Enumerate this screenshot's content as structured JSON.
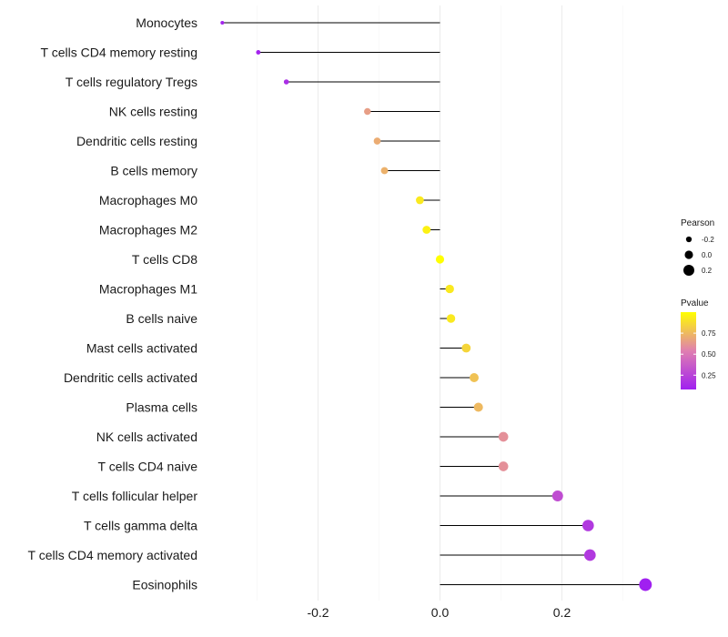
{
  "chart_data": {
    "type": "lollipop",
    "title": "",
    "xlabel": "",
    "ylabel": "",
    "xlim": [
      -0.36,
      0.34
    ],
    "x_ticks": [
      -0.2,
      0.0,
      0.2
    ],
    "x_tick_labels": [
      "-0.2",
      "0.0",
      "0.2"
    ],
    "grid": true,
    "categories": [
      "Monocytes",
      "T cells CD4 memory resting",
      "T cells regulatory  Tregs",
      "NK cells resting",
      "Dendritic cells resting",
      "B cells memory",
      "Macrophages M0",
      "Macrophages M2",
      "T cells CD8",
      "Macrophages M1",
      "B cells naive",
      "Mast cells activated",
      "Dendritic cells activated",
      "Plasma cells",
      "NK cells activated",
      "T cells CD4 naive",
      "T cells follicular helper",
      "T cells gamma delta",
      "T cells CD4 memory activated",
      "Eosinophils"
    ],
    "pearson": [
      -0.357,
      -0.298,
      -0.252,
      -0.119,
      -0.103,
      -0.091,
      -0.033,
      -0.022,
      0.0,
      0.016,
      0.018,
      0.043,
      0.056,
      0.063,
      0.104,
      0.104,
      0.193,
      0.243,
      0.246,
      0.337
    ],
    "pvalue": [
      0.1,
      0.1,
      0.15,
      0.65,
      0.7,
      0.72,
      0.92,
      0.95,
      1.0,
      0.92,
      0.92,
      0.85,
      0.78,
      0.75,
      0.6,
      0.6,
      0.3,
      0.2,
      0.2,
      0.08
    ],
    "legend_size": {
      "title": "Pearson",
      "labels": [
        "-0.2",
        "0.0",
        "0.2"
      ],
      "values": [
        -0.2,
        0.0,
        0.2
      ]
    },
    "legend_color": {
      "title": "Pvalue",
      "labels": [
        "0.25",
        "0.50",
        "0.75"
      ],
      "values": [
        0.25,
        0.5,
        0.75
      ],
      "range": [
        0.08,
        1.0
      ],
      "low_color": "#a020f0",
      "mid_color": "#e07fb0",
      "high_color": "#ffff00"
    },
    "legend_position": "right"
  }
}
